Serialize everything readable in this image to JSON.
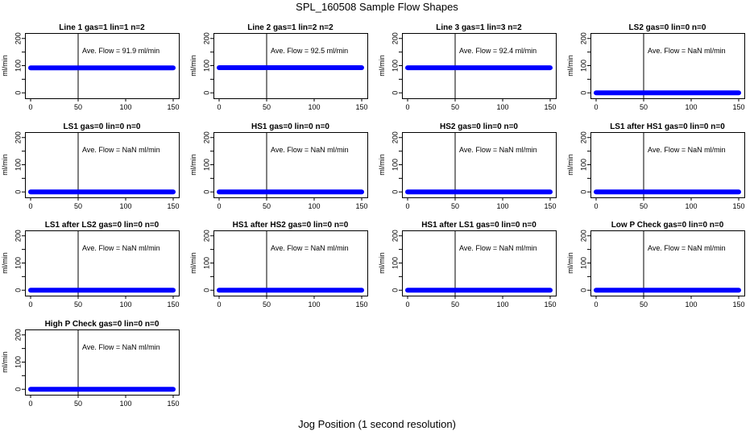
{
  "figure": {
    "title": "SPL_160508  Sample Flow Shapes",
    "xlabel": "Jog Position (1 second resolution)"
  },
  "colors": {
    "series": "#0000ff",
    "axis": "#000000"
  },
  "chart_data": [
    {
      "type": "scatter",
      "title": "Line 1 gas=1 lin=1 n=2",
      "annotation": "Ave. Flow =  91.9  ml/min",
      "ylabel": "ml/min",
      "xlim": [
        0,
        150
      ],
      "ylim": [
        -20,
        220
      ],
      "xticks": [
        0,
        50,
        100,
        150
      ],
      "yticks": [
        0,
        100,
        200
      ],
      "y_minor_ticks": [
        50,
        150
      ],
      "vline_x": 50,
      "series": [
        {
          "name": "flow",
          "x_range": [
            0,
            150
          ],
          "y": 91.9
        }
      ]
    },
    {
      "type": "scatter",
      "title": "Line 2 gas=1 lin=2 n=2",
      "annotation": "Ave. Flow =  92.5  ml/min",
      "ylabel": "ml/min",
      "xlim": [
        0,
        150
      ],
      "ylim": [
        -20,
        220
      ],
      "xticks": [
        0,
        50,
        100,
        150
      ],
      "yticks": [
        0,
        100,
        200
      ],
      "y_minor_ticks": [
        50,
        150
      ],
      "vline_x": 50,
      "series": [
        {
          "name": "flow",
          "x_range": [
            0,
            150
          ],
          "y": 92.5
        }
      ]
    },
    {
      "type": "scatter",
      "title": "Line 3 gas=1 lin=3 n=2",
      "annotation": "Ave. Flow =  92.4  ml/min",
      "ylabel": "ml/min",
      "xlim": [
        0,
        150
      ],
      "ylim": [
        -20,
        220
      ],
      "xticks": [
        0,
        50,
        100,
        150
      ],
      "yticks": [
        0,
        100,
        200
      ],
      "y_minor_ticks": [
        50,
        150
      ],
      "vline_x": 50,
      "series": [
        {
          "name": "flow",
          "x_range": [
            0,
            150
          ],
          "y": 92.4
        }
      ]
    },
    {
      "type": "scatter",
      "title": "LS2 gas=0 lin=0 n=0",
      "annotation": "Ave. Flow =  NaN  ml/min",
      "ylabel": "ml/min",
      "xlim": [
        0,
        150
      ],
      "ylim": [
        -20,
        220
      ],
      "xticks": [
        0,
        50,
        100,
        150
      ],
      "yticks": [
        0,
        100,
        200
      ],
      "y_minor_ticks": [
        50,
        150
      ],
      "vline_x": 50,
      "series": [
        {
          "name": "flow",
          "x_range": [
            0,
            150
          ],
          "y": 0
        }
      ]
    },
    {
      "type": "scatter",
      "title": "LS1 gas=0 lin=0 n=0",
      "annotation": "Ave. Flow =  NaN  ml/min",
      "ylabel": "ml/min",
      "xlim": [
        0,
        150
      ],
      "ylim": [
        -20,
        220
      ],
      "xticks": [
        0,
        50,
        100,
        150
      ],
      "yticks": [
        0,
        100,
        200
      ],
      "y_minor_ticks": [
        50,
        150
      ],
      "vline_x": 50,
      "series": [
        {
          "name": "flow",
          "x_range": [
            0,
            150
          ],
          "y": 0
        }
      ]
    },
    {
      "type": "scatter",
      "title": "HS1 gas=0 lin=0 n=0",
      "annotation": "Ave. Flow =  NaN  ml/min",
      "ylabel": "ml/min",
      "xlim": [
        0,
        150
      ],
      "ylim": [
        -20,
        220
      ],
      "xticks": [
        0,
        50,
        100,
        150
      ],
      "yticks": [
        0,
        100,
        200
      ],
      "y_minor_ticks": [
        50,
        150
      ],
      "vline_x": 50,
      "series": [
        {
          "name": "flow",
          "x_range": [
            0,
            150
          ],
          "y": 0
        }
      ]
    },
    {
      "type": "scatter",
      "title": "HS2 gas=0 lin=0 n=0",
      "annotation": "Ave. Flow =  NaN  ml/min",
      "ylabel": "ml/min",
      "xlim": [
        0,
        150
      ],
      "ylim": [
        -20,
        220
      ],
      "xticks": [
        0,
        50,
        100,
        150
      ],
      "yticks": [
        0,
        100,
        200
      ],
      "y_minor_ticks": [
        50,
        150
      ],
      "vline_x": 50,
      "series": [
        {
          "name": "flow",
          "x_range": [
            0,
            150
          ],
          "y": 0
        }
      ]
    },
    {
      "type": "scatter",
      "title": "LS1 after HS1 gas=0 lin=0 n=0",
      "annotation": "Ave. Flow =  NaN  ml/min",
      "ylabel": "ml/min",
      "xlim": [
        0,
        150
      ],
      "ylim": [
        -20,
        220
      ],
      "xticks": [
        0,
        50,
        100,
        150
      ],
      "yticks": [
        0,
        100,
        200
      ],
      "y_minor_ticks": [
        50,
        150
      ],
      "vline_x": 50,
      "series": [
        {
          "name": "flow",
          "x_range": [
            0,
            150
          ],
          "y": 0
        }
      ]
    },
    {
      "type": "scatter",
      "title": "LS1 after LS2 gas=0 lin=0 n=0",
      "annotation": "Ave. Flow =  NaN  ml/min",
      "ylabel": "ml/min",
      "xlim": [
        0,
        150
      ],
      "ylim": [
        -20,
        220
      ],
      "xticks": [
        0,
        50,
        100,
        150
      ],
      "yticks": [
        0,
        100,
        200
      ],
      "y_minor_ticks": [
        50,
        150
      ],
      "vline_x": 50,
      "series": [
        {
          "name": "flow",
          "x_range": [
            0,
            150
          ],
          "y": 0
        }
      ]
    },
    {
      "type": "scatter",
      "title": "HS1 after HS2 gas=0 lin=0 n=0",
      "annotation": "Ave. Flow =  NaN  ml/min",
      "ylabel": "ml/min",
      "xlim": [
        0,
        150
      ],
      "ylim": [
        -20,
        220
      ],
      "xticks": [
        0,
        50,
        100,
        150
      ],
      "yticks": [
        0,
        100,
        200
      ],
      "y_minor_ticks": [
        50,
        150
      ],
      "vline_x": 50,
      "series": [
        {
          "name": "flow",
          "x_range": [
            0,
            150
          ],
          "y": 0
        }
      ]
    },
    {
      "type": "scatter",
      "title": "HS1 after LS1 gas=0 lin=0 n=0",
      "annotation": "Ave. Flow =  NaN  ml/min",
      "ylabel": "ml/min",
      "xlim": [
        0,
        150
      ],
      "ylim": [
        -20,
        220
      ],
      "xticks": [
        0,
        50,
        100,
        150
      ],
      "yticks": [
        0,
        100,
        200
      ],
      "y_minor_ticks": [
        50,
        150
      ],
      "vline_x": 50,
      "series": [
        {
          "name": "flow",
          "x_range": [
            0,
            150
          ],
          "y": 0
        }
      ]
    },
    {
      "type": "scatter",
      "title": "Low P Check gas=0 lin=0 n=0",
      "annotation": "Ave. Flow =  NaN  ml/min",
      "ylabel": "ml/min",
      "xlim": [
        0,
        150
      ],
      "ylim": [
        -20,
        220
      ],
      "xticks": [
        0,
        50,
        100,
        150
      ],
      "yticks": [
        0,
        100,
        200
      ],
      "y_minor_ticks": [
        50,
        150
      ],
      "vline_x": 50,
      "series": [
        {
          "name": "flow",
          "x_range": [
            0,
            150
          ],
          "y": 0
        }
      ]
    },
    {
      "type": "scatter",
      "title": "High P Check gas=0 lin=0 n=0",
      "annotation": "Ave. Flow =  NaN  ml/min",
      "ylabel": "ml/min",
      "xlim": [
        0,
        150
      ],
      "ylim": [
        -20,
        220
      ],
      "xticks": [
        0,
        50,
        100,
        150
      ],
      "yticks": [
        0,
        100,
        200
      ],
      "y_minor_ticks": [
        50,
        150
      ],
      "vline_x": 50,
      "series": [
        {
          "name": "flow",
          "x_range": [
            0,
            150
          ],
          "y": 0
        }
      ]
    }
  ]
}
